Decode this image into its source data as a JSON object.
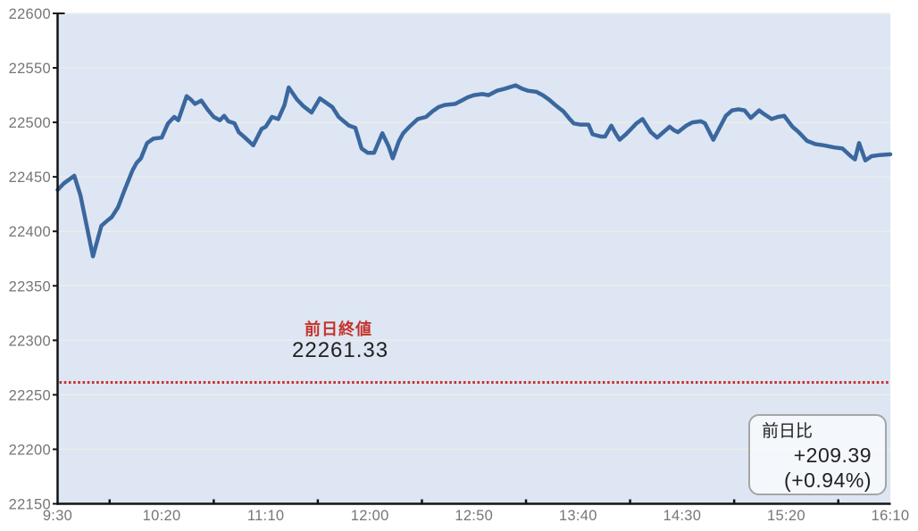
{
  "colors": {
    "line": "#3b679f",
    "plot_background": "#dde6f2",
    "gridline": "#efeeea",
    "axis": "#141414",
    "axis_label": "#767676",
    "reference_red": "#c5322d",
    "dark_text": "#212121",
    "box_border": "#a5a5a5"
  },
  "annotations": {
    "prev_close_label": "前日終値",
    "prev_close_value": "22261.33"
  },
  "change_box": {
    "title": "前日比",
    "change": "+209.39",
    "change_percent": "(+0.94%)"
  },
  "chart_data": {
    "type": "line",
    "title": "",
    "xlabel": "",
    "ylabel": "",
    "grid": true,
    "plot_background": "#dde6f2",
    "y_axis": {
      "min": 22150,
      "max": 22600,
      "step": 50,
      "tick_labels": [
        "22600",
        "22550",
        "22500",
        "22450",
        "22400",
        "22350",
        "22300",
        "22250",
        "22200",
        "22150"
      ]
    },
    "x_axis": {
      "start_label": "9:30",
      "end_label": "16:10",
      "total_minutes": 400,
      "label_spacing_minutes": 50,
      "tick_labels": [
        "9:30",
        "10:20",
        "11:10",
        "12:00",
        "12:50",
        "13:40",
        "14:30",
        "15:20",
        "16:10"
      ],
      "minor_tick_minutes": [
        25,
        75,
        125,
        175,
        225,
        275,
        325,
        375
      ]
    },
    "reference_line": {
      "name": "previous-day-close",
      "value": 22261.33,
      "style": "dotted",
      "color": "#c5322d"
    },
    "change_vs_prev_day": {
      "points": 209.39,
      "percent": 0.94
    },
    "series": [
      {
        "name": "price",
        "color": "#3b679f",
        "points": [
          [
            0,
            22438
          ],
          [
            3,
            22444
          ],
          [
            8,
            22451
          ],
          [
            11,
            22433
          ],
          [
            17,
            22377
          ],
          [
            21,
            22405
          ],
          [
            24,
            22410
          ],
          [
            26,
            22413
          ],
          [
            29,
            22422
          ],
          [
            32,
            22437
          ],
          [
            36,
            22456
          ],
          [
            38,
            22463
          ],
          [
            40,
            22467
          ],
          [
            43,
            22481
          ],
          [
            46,
            22485
          ],
          [
            50,
            22486
          ],
          [
            53,
            22499
          ],
          [
            56,
            22505
          ],
          [
            58,
            22502
          ],
          [
            62,
            22524
          ],
          [
            64,
            22521
          ],
          [
            66,
            22517
          ],
          [
            69,
            22520
          ],
          [
            72,
            22512
          ],
          [
            75,
            22505
          ],
          [
            78,
            22502
          ],
          [
            80,
            22506
          ],
          [
            82,
            22501
          ],
          [
            85,
            22499
          ],
          [
            87,
            22491
          ],
          [
            90,
            22486
          ],
          [
            94,
            22479
          ],
          [
            98,
            22494
          ],
          [
            100,
            22496
          ],
          [
            103,
            22505
          ],
          [
            106,
            22503
          ],
          [
            109,
            22516
          ],
          [
            111,
            22532
          ],
          [
            115,
            22521
          ],
          [
            118,
            22515
          ],
          [
            122,
            22509
          ],
          [
            126,
            22522
          ],
          [
            129,
            22518
          ],
          [
            132,
            22514
          ],
          [
            135,
            22505
          ],
          [
            140,
            22497
          ],
          [
            143,
            22495
          ],
          [
            146,
            22476
          ],
          [
            149,
            22472
          ],
          [
            152,
            22472
          ],
          [
            156,
            22490
          ],
          [
            159,
            22478
          ],
          [
            161,
            22467
          ],
          [
            164,
            22483
          ],
          [
            166,
            22490
          ],
          [
            169,
            22496
          ],
          [
            173,
            22503
          ],
          [
            177,
            22505
          ],
          [
            180,
            22510
          ],
          [
            183,
            22514
          ],
          [
            186,
            22516
          ],
          [
            191,
            22517
          ],
          [
            194,
            22520
          ],
          [
            197,
            22523
          ],
          [
            200,
            22525
          ],
          [
            204,
            22526
          ],
          [
            207,
            22525
          ],
          [
            211,
            22529
          ],
          [
            215,
            22531
          ],
          [
            220,
            22534
          ],
          [
            223,
            22531
          ],
          [
            226,
            22529
          ],
          [
            230,
            22528
          ],
          [
            233,
            22525
          ],
          [
            236,
            22521
          ],
          [
            239,
            22516
          ],
          [
            243,
            22510
          ],
          [
            246,
            22503
          ],
          [
            248,
            22499
          ],
          [
            251,
            22498
          ],
          [
            255,
            22498
          ],
          [
            257,
            22489
          ],
          [
            261,
            22487
          ],
          [
            263,
            22487
          ],
          [
            266,
            22497
          ],
          [
            268,
            22490
          ],
          [
            270,
            22484
          ],
          [
            273,
            22489
          ],
          [
            275,
            22493
          ],
          [
            278,
            22499
          ],
          [
            281,
            22503
          ],
          [
            283,
            22497
          ],
          [
            285,
            22491
          ],
          [
            288,
            22486
          ],
          [
            291,
            22491
          ],
          [
            294,
            22496
          ],
          [
            296,
            22493
          ],
          [
            298,
            22491
          ],
          [
            300,
            22494
          ],
          [
            302,
            22497
          ],
          [
            305,
            22500
          ],
          [
            309,
            22501
          ],
          [
            311,
            22499
          ],
          [
            315,
            22484
          ],
          [
            318,
            22495
          ],
          [
            321,
            22506
          ],
          [
            324,
            22511
          ],
          [
            327,
            22512
          ],
          [
            330,
            22511
          ],
          [
            333,
            22504
          ],
          [
            337,
            22511
          ],
          [
            339,
            22508
          ],
          [
            343,
            22503
          ],
          [
            346,
            22505
          ],
          [
            349,
            22506
          ],
          [
            353,
            22496
          ],
          [
            356,
            22491
          ],
          [
            360,
            22483
          ],
          [
            364,
            22480
          ],
          [
            368,
            22479
          ],
          [
            373,
            22477
          ],
          [
            377,
            22476
          ],
          [
            381,
            22469
          ],
          [
            383,
            22466
          ],
          [
            385,
            22481
          ],
          [
            388,
            22465
          ],
          [
            391,
            22469
          ],
          [
            395,
            22470
          ],
          [
            400,
            22470.72
          ]
        ]
      }
    ]
  }
}
